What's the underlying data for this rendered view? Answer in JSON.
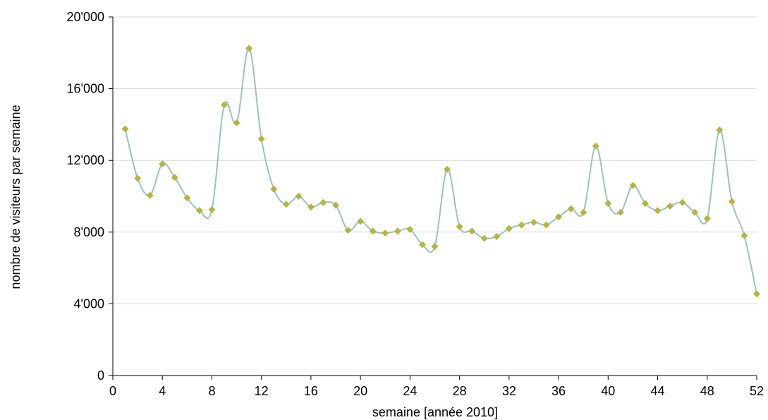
{
  "chart_data": {
    "type": "line",
    "xlabel": "semaine [année 2010]",
    "ylabel": "nombre de visiteurs par semaine",
    "xlim": [
      0,
      52
    ],
    "ylim": [
      0,
      20000
    ],
    "x_ticks": [
      "0",
      "4",
      "8",
      "12",
      "16",
      "20",
      "24",
      "28",
      "32",
      "36",
      "40",
      "44",
      "48",
      "52"
    ],
    "y_ticks": [
      "0",
      "4'000",
      "8'000",
      "12'000",
      "16'000",
      "20'000"
    ],
    "grid": "horizontal",
    "line_color": "#93c5c5",
    "marker_color": "#b7b43c",
    "marker": "diamond",
    "x": [
      1,
      2,
      3,
      4,
      5,
      6,
      7,
      8,
      9,
      10,
      11,
      12,
      13,
      14,
      15,
      16,
      17,
      18,
      19,
      20,
      21,
      22,
      23,
      24,
      25,
      26,
      27,
      28,
      29,
      30,
      31,
      32,
      33,
      34,
      35,
      36,
      37,
      38,
      39,
      40,
      41,
      42,
      43,
      44,
      45,
      46,
      47,
      48,
      49,
      50,
      51,
      52
    ],
    "values": [
      13750,
      11000,
      10050,
      11800,
      11050,
      9900,
      9200,
      9250,
      15100,
      14100,
      18250,
      13200,
      10400,
      9550,
      10000,
      9400,
      9650,
      9500,
      8100,
      8600,
      8050,
      7950,
      8050,
      8150,
      7300,
      7200,
      11500,
      8300,
      8050,
      7650,
      7750,
      8200,
      8400,
      8550,
      8400,
      8850,
      9300,
      9100,
      12800,
      9600,
      9100,
      10600,
      9600,
      9200,
      9450,
      9650,
      9100,
      8750,
      13700,
      9700,
      7800,
      4550
    ]
  }
}
